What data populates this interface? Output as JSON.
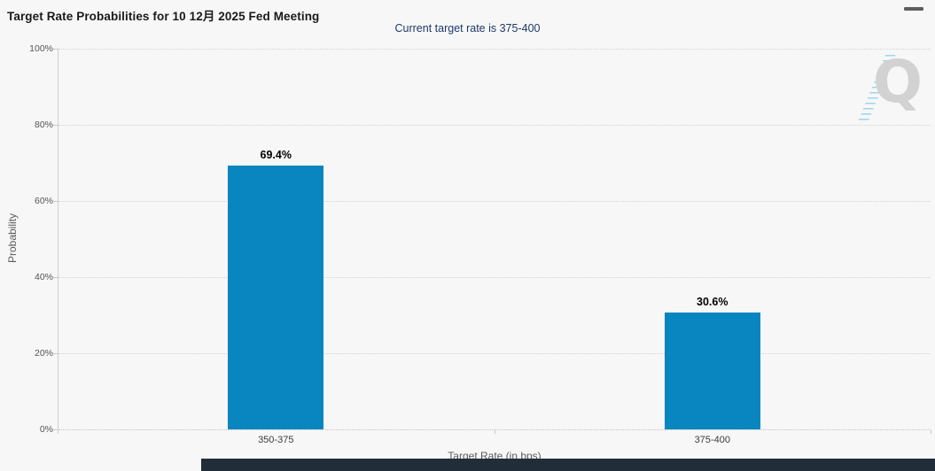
{
  "header": {
    "menu_icon": "hamburger-icon"
  },
  "watermark": {
    "letter": "Q"
  },
  "chart_data": {
    "type": "bar",
    "title": "Target Rate Probabilities for 10 12月 2025 Fed Meeting",
    "subtitle": "Current target rate is 375-400",
    "categories": [
      "350-375",
      "375-400"
    ],
    "values": [
      69.4,
      30.6
    ],
    "data_labels": [
      "69.4%",
      "30.6%"
    ],
    "xlabel": "Target Rate (in bps)",
    "ylabel": "Probability",
    "ylim": [
      0,
      100
    ],
    "ytick_labels": [
      "0%",
      "20%",
      "40%",
      "60%",
      "80%",
      "100%"
    ],
    "legend": "none",
    "grid": "horizontal-dotted",
    "colors": {
      "bar": "#0986bf",
      "subtitle_text": "#1e3a68",
      "title_text": "#1a1a1a",
      "axis_line": "#cfcfcf",
      "grid_dots": "#d4d4d4",
      "footer_strip": "#212d39"
    }
  }
}
